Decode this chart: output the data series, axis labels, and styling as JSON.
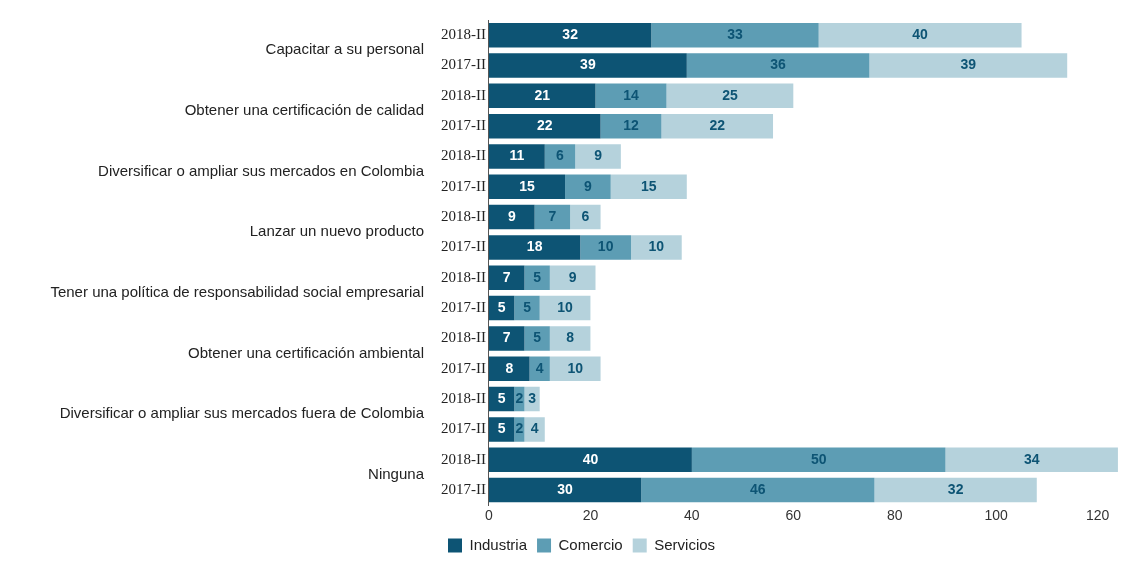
{
  "chart_data": {
    "type": "bar",
    "orientation": "horizontal",
    "stacked": true,
    "categories": [
      "2018-II",
      "2017-II",
      "2018-II",
      "2017-II",
      "2018-II",
      "2017-II",
      "2018-II",
      "2017-II",
      "2018-II",
      "2017-II",
      "2018-II",
      "2017-II",
      "2018-II",
      "2017-II",
      "2018-II",
      "2017-II"
    ],
    "annotations": [
      "Capacitar a su personal",
      "Obtener una certificación de calidad",
      "Diversificar o ampliar sus mercados en Colombia",
      "Lanzar un nuevo producto",
      "Tener una política de responsabilidad social empresarial",
      "Obtener una certificación ambiental",
      "Diversificar o ampliar sus mercados fuera de Colombia",
      "Ninguna"
    ],
    "series": [
      {
        "name": "Industria",
        "color": "#0d5474",
        "values": [
          32,
          39,
          21,
          22,
          11,
          15,
          9,
          18,
          7,
          5,
          7,
          8,
          5,
          5,
          40,
          30
        ]
      },
      {
        "name": "Comercio",
        "color": "#5d9db4",
        "values": [
          33,
          36,
          14,
          12,
          6,
          9,
          7,
          10,
          5,
          5,
          5,
          4,
          2,
          2,
          50,
          46
        ]
      },
      {
        "name": "Servicios",
        "color": "#b5d2dc",
        "values": [
          40,
          39,
          25,
          22,
          9,
          15,
          6,
          10,
          9,
          10,
          8,
          10,
          3,
          4,
          34,
          32
        ]
      }
    ],
    "xlim": [
      0,
      125
    ],
    "xticks": [
      0,
      20,
      40,
      60,
      80,
      100,
      120
    ],
    "data_labels": true,
    "grid": false,
    "legend": "bottom"
  }
}
